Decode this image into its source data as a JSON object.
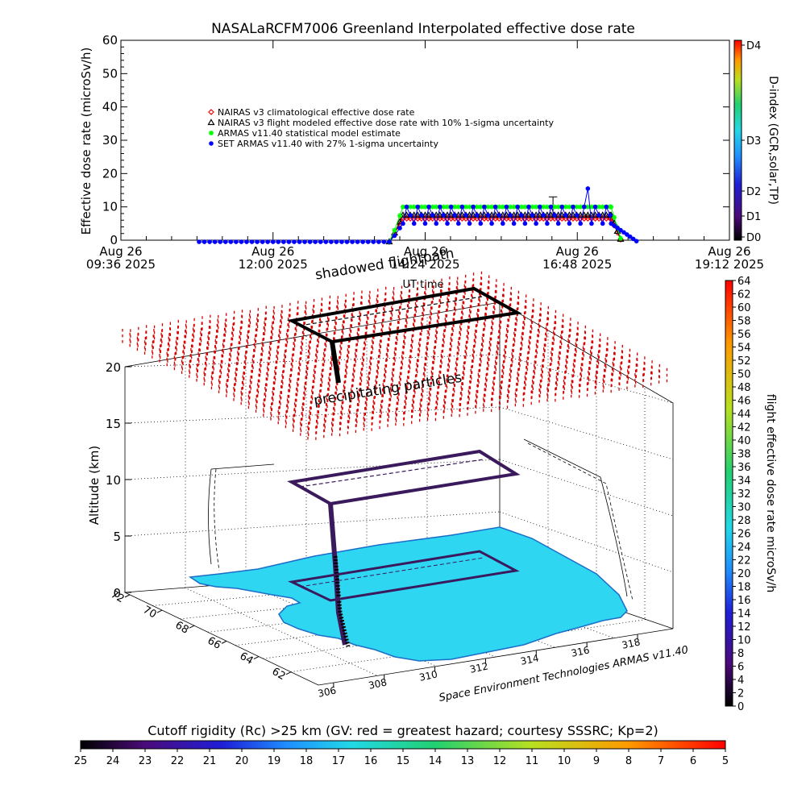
{
  "colors": {
    "red_series": "#ff0000",
    "black_series": "#000000",
    "green_series": "#00ff00",
    "blue_series": "#0000ff",
    "greenland": "#2fd6f2",
    "precip": "#d80000",
    "flight_dark": "#3a1a5c"
  },
  "chart_data": [
    {
      "type": "line",
      "title": "NASALaRCFM7006  Greenland Interpolated effective dose rate",
      "xlabel": "UT time",
      "ylabel": "Effective dose rate (microSv/h)",
      "ylim": [
        0,
        60
      ],
      "yticks": [
        "0",
        "10",
        "20",
        "30",
        "40",
        "50",
        "60"
      ],
      "xticks": [
        {
          "line1": "Aug 26",
          "line2": "09:36 2025",
          "t": 576
        },
        {
          "line1": "Aug 26",
          "line2": "12:00 2025",
          "t": 720
        },
        {
          "line1": "Aug 26",
          "line2": "14:24 2025",
          "t": 864
        },
        {
          "line1": "Aug 26",
          "line2": "16:48 2025",
          "t": 1008
        },
        {
          "line1": "Aug 26",
          "line2": "19:12 2025",
          "t": 1152
        }
      ],
      "xlim_minutes": [
        576,
        1152
      ],
      "legend": [
        {
          "label": "NAIRAS v3 climatological effective dose rate",
          "marker": "diamond",
          "color": "#ff0000"
        },
        {
          "label": "NAIRAS v3 flight modeled effective dose rate with 10% 1-sigma uncertainty",
          "marker": "triangle",
          "color": "#000000"
        },
        {
          "label": "ARMAS v11.40 statistical model estimate",
          "marker": "asterisk",
          "color": "#00ff00"
        },
        {
          "label": "SET ARMAS v11.40 with 27% 1-sigma uncertainty",
          "marker": "circle",
          "color": "#0000ff"
        }
      ],
      "series": [
        {
          "name": "NAIRAS v3 climatological effective dose rate",
          "color": "#ff0000",
          "start": 830,
          "rise_end": 843,
          "end": 1040,
          "fall_end": 1050,
          "value": 6.5,
          "low": -0.5
        },
        {
          "name": "NAIRAS v3 flight modeled effective dose rate with 10% 1-sigma uncertainty",
          "color": "#000000",
          "start": 830,
          "rise_end": 843,
          "end": 1040,
          "fall_end": 1050,
          "value": 7.5,
          "low": -0.5
        },
        {
          "name": "ARMAS v11.40 statistical model estimate",
          "color": "#00ff00",
          "start": 830,
          "rise_end": 843,
          "end": 1040,
          "fall_end": 1050,
          "value": 10,
          "low": -0.5
        },
        {
          "name": "SET ARMAS v11.40 with 27% 1-sigma uncertainty",
          "color": "#0000ff",
          "start": 650,
          "rise_end": 843,
          "end": 1040,
          "fall_end": 1065,
          "value": 5,
          "low": -0.5,
          "levels": [
            5,
            7.5,
            10
          ],
          "spike_t": 1019,
          "spike_v": 15.5
        }
      ],
      "right_colorbar": {
        "label": "D-index (GCR,solar,TP)",
        "ticks": [
          "D0",
          "D1",
          "D2",
          "D3",
          "D4"
        ],
        "tick_values": [
          0,
          1,
          2,
          3,
          4
        ]
      }
    },
    {
      "type": "scatter",
      "subtype": "3d-flight-track",
      "zlabel": "Altitude (km)",
      "zticks": [
        "0",
        "5",
        "10",
        "15",
        "20"
      ],
      "lat_ticks": [
        "72",
        "70",
        "68",
        "66",
        "64",
        "62"
      ],
      "lon_ticks": [
        "306",
        "308",
        "310",
        "312",
        "314",
        "316",
        "318"
      ],
      "annotations": [
        "shadowed flightpath",
        "precipitating particles"
      ],
      "credit": "Space Environment Technologies ARMAS v11.40",
      "right_colorbar": {
        "label": "flight effective dose rate microSv/h",
        "min": 0,
        "max": 64,
        "step": 2
      },
      "bottom_colorbar": {
        "label": "Cutoff rigidity (Rc) >25 km (GV: red = greatest hazard; courtesy SSSRC; Kp=2)",
        "ticks": [
          "25",
          "24",
          "23",
          "22",
          "21",
          "20",
          "19",
          "18",
          "17",
          "16",
          "15",
          "14",
          "13",
          "12",
          "11",
          "10",
          "9",
          "8",
          "7",
          "6",
          "5"
        ]
      }
    }
  ]
}
